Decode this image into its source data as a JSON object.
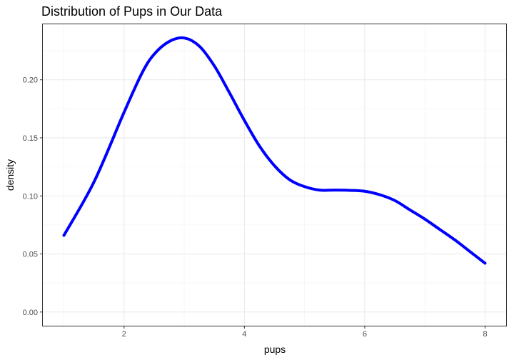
{
  "chart_data": {
    "type": "line",
    "title": "Distribution of Pups in Our Data",
    "xlabel": "pups",
    "ylabel": "density",
    "xlim": [
      0.65,
      8.35
    ],
    "ylim": [
      -0.0118,
      0.2478
    ],
    "x_ticks": [
      2,
      4,
      6,
      8
    ],
    "y_ticks": [
      0.0,
      0.05,
      0.1,
      0.15,
      0.2
    ],
    "x_tick_labels": [
      "2",
      "4",
      "6",
      "8"
    ],
    "y_tick_labels": [
      "0.00",
      "0.05",
      "0.10",
      "0.15",
      "0.20"
    ],
    "grid": true,
    "line_color": "#0000ff",
    "series": [
      {
        "x": [
          1.0,
          1.5,
          2.0,
          2.3,
          2.5,
          2.75,
          3.0,
          3.25,
          3.5,
          3.75,
          4.0,
          4.25,
          4.5,
          4.75,
          5.0,
          5.25,
          5.5,
          5.75,
          6.0,
          6.25,
          6.5,
          6.75,
          7.0,
          7.25,
          7.5,
          7.75,
          8.0
        ],
        "y": [
          0.066,
          0.112,
          0.172,
          0.206,
          0.222,
          0.233,
          0.236,
          0.229,
          0.212,
          0.189,
          0.165,
          0.143,
          0.126,
          0.114,
          0.108,
          0.105,
          0.105,
          0.1048,
          0.104,
          0.101,
          0.096,
          0.088,
          0.08,
          0.071,
          0.062,
          0.052,
          0.042
        ]
      }
    ]
  }
}
